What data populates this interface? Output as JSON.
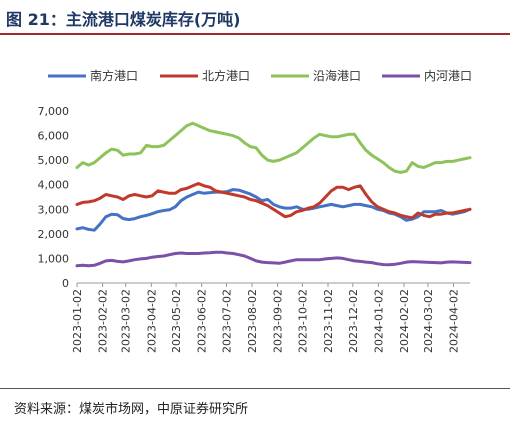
{
  "page": {
    "title": "图 21：主流港口煤炭库存(万吨)",
    "source": "资料来源：煤炭市场网，中原证券研究所"
  },
  "chart_data": {
    "type": "line",
    "title": "图 21：主流港口煤炭库存(万吨)",
    "xlabel": "",
    "ylabel": "",
    "ylim": [
      0,
      7000
    ],
    "yticks": [
      0,
      1000,
      2000,
      3000,
      4000,
      5000,
      6000,
      7000
    ],
    "ytick_labels": [
      "0",
      "1,000",
      "2,000",
      "3,000",
      "4,000",
      "5,000",
      "6,000",
      "7,000"
    ],
    "xtick_labels": [
      "2023-01-02",
      "2023-02-02",
      "2023-03-02",
      "2023-04-02",
      "2023-05-02",
      "2023-06-02",
      "2023-07-02",
      "2023-08-02",
      "2023-09-02",
      "2023-10-02",
      "2023-11-02",
      "2023-12-02",
      "2024-01-02",
      "2024-02-02",
      "2024-03-02",
      "2024-04-02"
    ],
    "grid": false,
    "legend_position": "top",
    "x": [
      "2023-01-02",
      "2023-01-09",
      "2023-01-16",
      "2023-01-23",
      "2023-01-30",
      "2023-02-06",
      "2023-02-13",
      "2023-02-20",
      "2023-02-27",
      "2023-03-06",
      "2023-03-13",
      "2023-03-20",
      "2023-03-27",
      "2023-04-03",
      "2023-04-10",
      "2023-04-17",
      "2023-04-24",
      "2023-05-01",
      "2023-05-08",
      "2023-05-15",
      "2023-05-22",
      "2023-05-29",
      "2023-06-05",
      "2023-06-12",
      "2023-06-19",
      "2023-06-26",
      "2023-07-03",
      "2023-07-10",
      "2023-07-17",
      "2023-07-24",
      "2023-07-31",
      "2023-08-07",
      "2023-08-14",
      "2023-08-21",
      "2023-08-28",
      "2023-09-04",
      "2023-09-11",
      "2023-09-18",
      "2023-09-25",
      "2023-10-02",
      "2023-10-09",
      "2023-10-16",
      "2023-10-23",
      "2023-10-30",
      "2023-11-06",
      "2023-11-13",
      "2023-11-20",
      "2023-11-27",
      "2023-12-04",
      "2023-12-11",
      "2023-12-18",
      "2023-12-25",
      "2024-01-01",
      "2024-01-08",
      "2024-01-15",
      "2024-01-22",
      "2024-01-29",
      "2024-02-05",
      "2024-02-12",
      "2024-02-19",
      "2024-02-26",
      "2024-03-04",
      "2024-03-11",
      "2024-03-18",
      "2024-03-25",
      "2024-04-01",
      "2024-04-08",
      "2024-04-15",
      "2024-04-22"
    ],
    "series": [
      {
        "name": "南方港口",
        "color": "#4472c4",
        "values": [
          2200,
          2250,
          2180,
          2150,
          2400,
          2700,
          2800,
          2780,
          2620,
          2580,
          2620,
          2700,
          2750,
          2820,
          2900,
          2950,
          2980,
          3100,
          3350,
          3500,
          3600,
          3700,
          3650,
          3680,
          3700,
          3700,
          3720,
          3800,
          3780,
          3700,
          3620,
          3500,
          3350,
          3400,
          3200,
          3100,
          3050,
          3050,
          3100,
          3000,
          3000,
          3050,
          3100,
          3150,
          3200,
          3150,
          3100,
          3150,
          3200,
          3200,
          3150,
          3100,
          3000,
          2950,
          2850,
          2800,
          2700,
          2550,
          2600,
          2700,
          2900,
          2900,
          2900,
          2950,
          2850,
          2800,
          2850,
          2900,
          3000
        ]
      },
      {
        "name": "北方港口",
        "color": "#c0392b",
        "values": [
          3200,
          3280,
          3300,
          3350,
          3450,
          3600,
          3550,
          3500,
          3400,
          3550,
          3600,
          3550,
          3500,
          3550,
          3750,
          3700,
          3650,
          3650,
          3800,
          3850,
          3950,
          4050,
          3950,
          3900,
          3750,
          3700,
          3650,
          3600,
          3550,
          3500,
          3400,
          3350,
          3250,
          3150,
          3000,
          2850,
          2700,
          2750,
          2900,
          2950,
          3050,
          3100,
          3250,
          3500,
          3750,
          3900,
          3900,
          3800,
          3900,
          3950,
          3600,
          3300,
          3100,
          3000,
          2900,
          2850,
          2750,
          2700,
          2650,
          2850,
          2750,
          2700,
          2800,
          2800,
          2850,
          2850,
          2900,
          2950,
          3000
        ]
      },
      {
        "name": "沿海港口",
        "color": "#8dc35a",
        "values": [
          4700,
          4900,
          4800,
          4900,
          5100,
          5300,
          5450,
          5400,
          5200,
          5250,
          5250,
          5300,
          5600,
          5550,
          5550,
          5600,
          5800,
          6000,
          6200,
          6400,
          6500,
          6400,
          6300,
          6200,
          6150,
          6100,
          6050,
          6000,
          5900,
          5700,
          5550,
          5500,
          5200,
          5000,
          4950,
          5000,
          5100,
          5200,
          5300,
          5500,
          5700,
          5900,
          6050,
          6000,
          5950,
          5950,
          6000,
          6050,
          6050,
          5700,
          5400,
          5200,
          5050,
          4900,
          4700,
          4550,
          4500,
          4550,
          4900,
          4750,
          4700,
          4800,
          4900,
          4900,
          4950,
          4950,
          5000,
          5050,
          5100
        ]
      },
      {
        "name": "内河港口",
        "color": "#7b50a8",
        "values": [
          700,
          720,
          700,
          720,
          800,
          900,
          920,
          880,
          860,
          900,
          950,
          980,
          1000,
          1050,
          1080,
          1100,
          1150,
          1200,
          1220,
          1200,
          1200,
          1200,
          1220,
          1230,
          1250,
          1250,
          1220,
          1200,
          1150,
          1100,
          1000,
          900,
          850,
          830,
          820,
          800,
          850,
          900,
          950,
          950,
          950,
          950,
          950,
          980,
          1000,
          1020,
          1000,
          950,
          900,
          880,
          850,
          830,
          780,
          750,
          740,
          760,
          800,
          850,
          870,
          860,
          850,
          840,
          830,
          820,
          850,
          860,
          850,
          840,
          830
        ]
      }
    ]
  }
}
